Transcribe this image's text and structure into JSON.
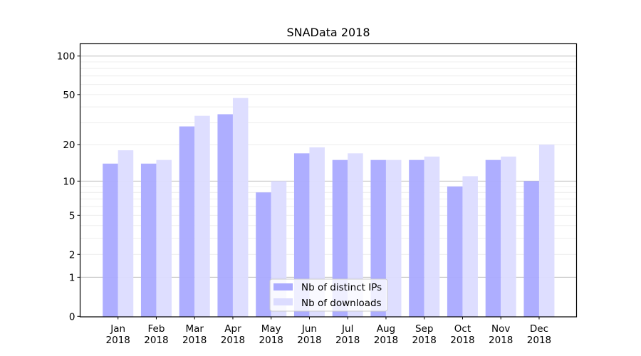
{
  "chart_data": {
    "type": "bar",
    "title": "SNAData 2018",
    "xlabel": "",
    "ylabel": "",
    "yscale": "log10(y+1)",
    "ylim": [
      0,
      110
    ],
    "grid": true,
    "legend_position": "lower-center",
    "categories": [
      {
        "month": "Jan",
        "year": "2018"
      },
      {
        "month": "Feb",
        "year": "2018"
      },
      {
        "month": "Mar",
        "year": "2018"
      },
      {
        "month": "Apr",
        "year": "2018"
      },
      {
        "month": "May",
        "year": "2018"
      },
      {
        "month": "Jun",
        "year": "2018"
      },
      {
        "month": "Jul",
        "year": "2018"
      },
      {
        "month": "Aug",
        "year": "2018"
      },
      {
        "month": "Sep",
        "year": "2018"
      },
      {
        "month": "Oct",
        "year": "2018"
      },
      {
        "month": "Nov",
        "year": "2018"
      },
      {
        "month": "Dec",
        "year": "2018"
      }
    ],
    "series": [
      {
        "name": "Nb of distinct IPs",
        "color": "#aaaaff",
        "values": [
          14,
          14,
          28,
          35,
          8,
          17,
          15,
          15,
          15,
          9,
          15,
          10
        ]
      },
      {
        "name": "Nb of downloads",
        "color": "#dcdcff",
        "values": [
          18,
          15,
          34,
          47,
          10,
          19,
          17,
          15,
          16,
          11,
          16,
          20
        ]
      }
    ],
    "yticks": [
      {
        "value": 0,
        "label": "0"
      },
      {
        "value": 1,
        "label": "1"
      },
      {
        "value": 2,
        "label": "2"
      },
      {
        "value": 5,
        "label": "5"
      },
      {
        "value": 10,
        "label": "10"
      },
      {
        "value": 20,
        "label": "20"
      },
      {
        "value": 50,
        "label": "50"
      },
      {
        "value": 100,
        "label": "100"
      }
    ],
    "major_grid": [
      1,
      10,
      100
    ],
    "minor_grid": [
      2,
      3,
      4,
      5,
      6,
      7,
      8,
      9,
      20,
      30,
      40,
      50,
      60,
      70,
      80,
      90
    ]
  }
}
